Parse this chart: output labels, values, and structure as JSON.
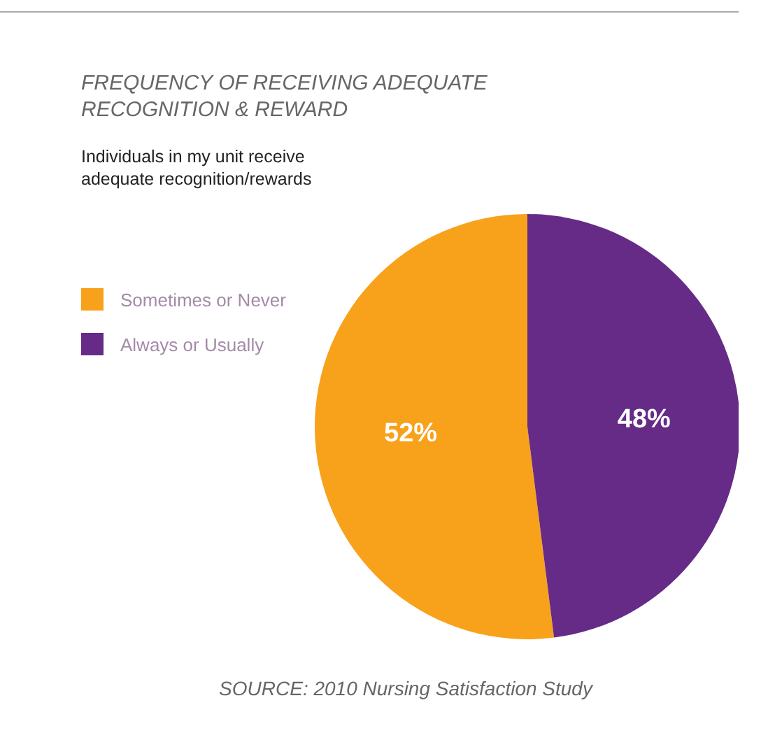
{
  "chart_data": {
    "type": "pie",
    "title": "FREQUENCY OF RECEIVING ADEQUATE RECOGNITION & REWARD",
    "subtitle": "Individuals in my unit receive adequate recognition/rewards",
    "categories": [
      "Sometimes or Never",
      "Always or Usually"
    ],
    "values": [
      52,
      48
    ],
    "colors": [
      "#f8a21c",
      "#652b87"
    ],
    "value_labels": [
      "52%",
      "48%"
    ],
    "legend": "left",
    "annotations": [
      "SOURCE: 2010 Nursing Satisfaction Study"
    ]
  }
}
